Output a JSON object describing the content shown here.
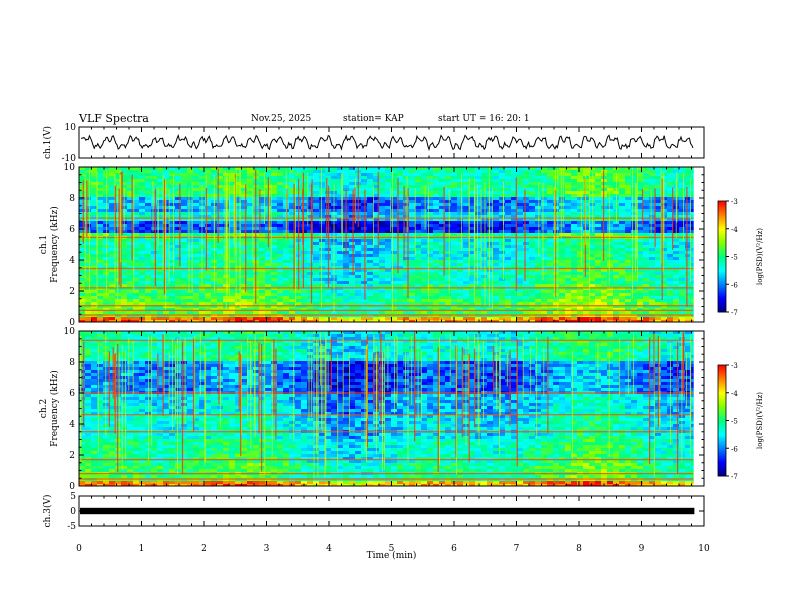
{
  "header": {
    "title": "VLF Spectra",
    "date": "Nov.25, 2025",
    "station": "station= KAP",
    "start": "start  UT =   16: 20: 1"
  },
  "chart_data": {
    "type": "heatmap",
    "title": "VLF Spectra",
    "xlabel": "Time  (min)",
    "xlim": [
      0,
      10
    ],
    "x_ticks": [
      "0",
      "1",
      "2",
      "3",
      "4",
      "5",
      "6",
      "7",
      "8",
      "9",
      "10"
    ],
    "data_end_min": 9.83,
    "panels": [
      {
        "id": "ch1-waveform",
        "type": "line",
        "ylabel": "ch.1(V)",
        "ylim": [
          -10,
          10
        ],
        "y_ticks": [
          "10",
          "-10"
        ],
        "baseline_v": 0,
        "amplitude_v": 5
      },
      {
        "id": "ch1-spectrogram",
        "type": "heatmap",
        "ylabel": "ch.1\nFrequency (kHz)",
        "ylabel_lines": [
          "ch.1",
          "Frequency (kHz)"
        ],
        "ylim": [
          0,
          10
        ],
        "y_ticks": [
          "0",
          "2",
          "4",
          "6",
          "8",
          "10"
        ],
        "z_range": [
          -7,
          -3
        ],
        "bands": [
          {
            "f_low": 0.0,
            "f_high": 0.3,
            "level": -3.6
          },
          {
            "f_low": 0.3,
            "f_high": 1.5,
            "level": -4.8
          },
          {
            "f_low": 1.5,
            "f_high": 2.5,
            "level": -5.0
          },
          {
            "f_low": 2.5,
            "f_high": 4.0,
            "level": -5.2
          },
          {
            "f_low": 4.0,
            "f_high": 5.4,
            "level": -5.4
          },
          {
            "f_low": 5.4,
            "f_high": 5.7,
            "level": -5.0
          },
          {
            "f_low": 5.7,
            "f_high": 6.6,
            "level": -6.3
          },
          {
            "f_low": 6.6,
            "f_high": 7.1,
            "level": -5.5
          },
          {
            "f_low": 7.1,
            "f_high": 8.0,
            "level": -5.9
          },
          {
            "f_low": 8.0,
            "f_high": 10.0,
            "level": -5.1
          }
        ],
        "lines_khz": [
          0.45,
          0.75,
          1.05,
          2.2,
          3.45,
          5.45,
          6.7
        ]
      },
      {
        "id": "ch2-spectrogram",
        "type": "heatmap",
        "ylabel": "ch.2\nFrequency (kHz)",
        "ylabel_lines": [
          "ch.2",
          "Frequency (kHz)"
        ],
        "ylim": [
          0,
          10
        ],
        "y_ticks": [
          "0",
          "2",
          "4",
          "6",
          "8",
          "10"
        ],
        "z_range": [
          -7,
          -3
        ],
        "bands": [
          {
            "f_low": 0.0,
            "f_high": 0.3,
            "level": -3.7
          },
          {
            "f_low": 0.3,
            "f_high": 1.5,
            "level": -5.0
          },
          {
            "f_low": 1.5,
            "f_high": 3.0,
            "level": -5.2
          },
          {
            "f_low": 3.0,
            "f_high": 4.6,
            "level": -5.5
          },
          {
            "f_low": 4.6,
            "f_high": 5.9,
            "level": -5.7
          },
          {
            "f_low": 5.9,
            "f_high": 8.0,
            "level": -6.1
          },
          {
            "f_low": 8.0,
            "f_high": 10.0,
            "level": -5.3
          }
        ],
        "lines_khz": [
          0.45,
          0.8,
          1.7,
          3.5,
          4.6,
          6.0,
          9.4
        ]
      },
      {
        "id": "ch3-waveform",
        "type": "line",
        "ylabel": "ch.3(V)",
        "ylim": [
          -5,
          5
        ],
        "y_ticks": [
          "5",
          "0",
          "-5"
        ],
        "baseline_v": 0,
        "amplitude_v": 0.4
      }
    ],
    "colorbars": [
      {
        "label": "log(PSD)(V²/Hz)",
        "range": [
          -7,
          -3
        ],
        "ticks": [
          "-3",
          "-4",
          "-5",
          "-6",
          "-7"
        ]
      },
      {
        "label": "log(PSD)(V²/Hz)",
        "range": [
          -7,
          -3
        ],
        "ticks": [
          "-3",
          "-4",
          "-5",
          "-6",
          "-7"
        ]
      }
    ],
    "colormap": [
      "#000080",
      "#0000ff",
      "#0080ff",
      "#00ffff",
      "#00ff80",
      "#80ff00",
      "#ffff00",
      "#ff8000",
      "#ff0000",
      "#ffffff"
    ]
  }
}
